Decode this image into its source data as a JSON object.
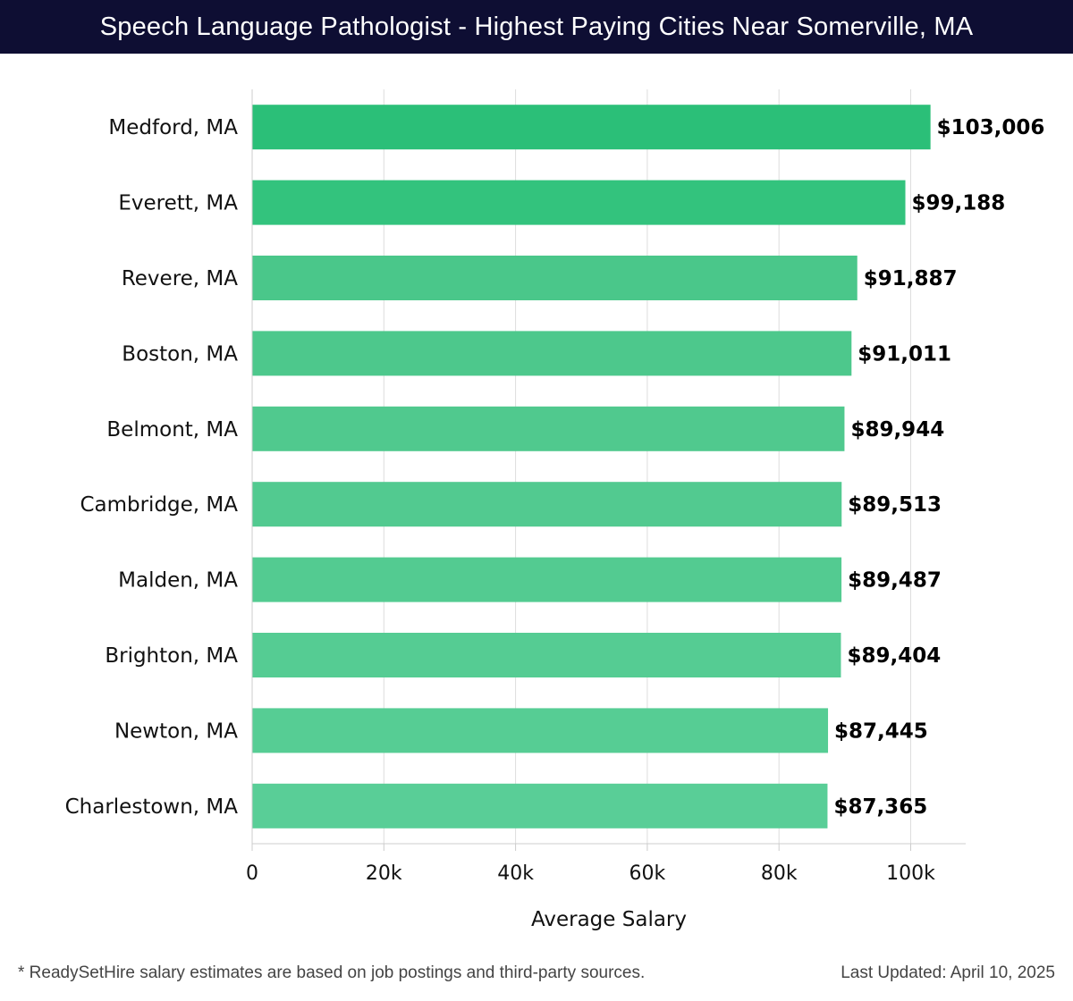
{
  "header": {
    "title": "Speech Language Pathologist - Highest Paying Cities Near Somerville, MA"
  },
  "chart_data": {
    "type": "bar",
    "orientation": "horizontal",
    "title": "Speech Language Pathologist - Highest Paying Cities Near Somerville, MA",
    "xlabel": "Average Salary",
    "ylabel": "",
    "xlim": [
      0,
      108000
    ],
    "xticks": [
      0,
      20000,
      40000,
      60000,
      80000,
      100000
    ],
    "xtick_labels": [
      "0",
      "20k",
      "40k",
      "60k",
      "80k",
      "100k"
    ],
    "grid": true,
    "categories": [
      "Medford, MA",
      "Everett, MA",
      "Revere, MA",
      "Boston, MA",
      "Belmont, MA",
      "Cambridge, MA",
      "Malden, MA",
      "Brighton, MA",
      "Newton, MA",
      "Charlestown, MA"
    ],
    "values": [
      103006,
      99188,
      91887,
      91011,
      89944,
      89513,
      89487,
      89404,
      87445,
      87365
    ],
    "value_labels": [
      "$103,006",
      "$99,188",
      "$91,887",
      "$91,011",
      "$89,944",
      "$89,513",
      "$89,487",
      "$89,404",
      "$87,445",
      "$87,365"
    ],
    "colors": [
      "#2bbf78",
      "#33c37d",
      "#4ac78a",
      "#4dc88c",
      "#50c98e",
      "#52ca90",
      "#53cb91",
      "#55cc93",
      "#56cd94",
      "#59ce97"
    ]
  },
  "footer": {
    "note": "* ReadySetHire salary estimates are based on job postings and third-party sources.",
    "updated": "Last Updated: April 10, 2025"
  }
}
